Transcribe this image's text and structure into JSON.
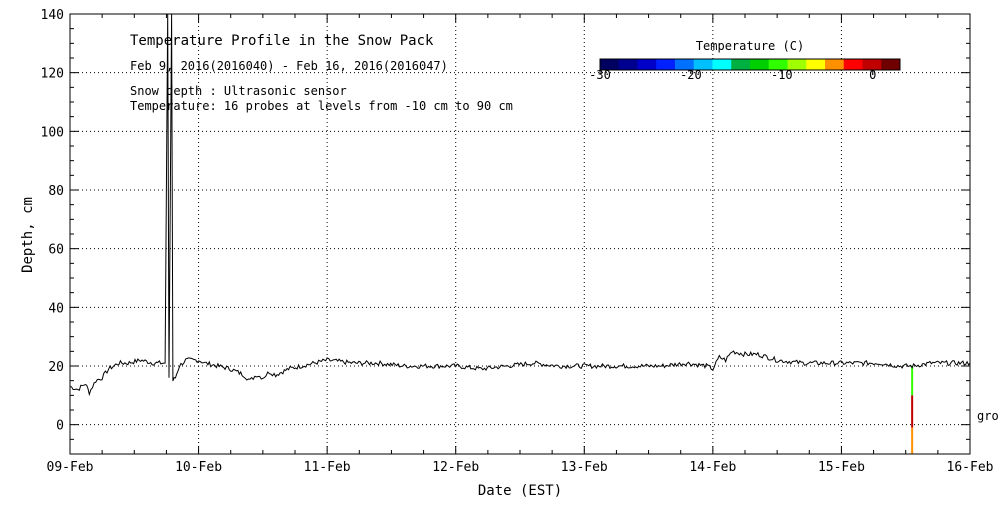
{
  "chart_data": {
    "type": "line",
    "title": "Temperature Profile in the Snow Pack",
    "subtitle": "Feb  9, 2016(2016040) - Feb 16, 2016(2016047)",
    "notes": [
      "Snow depth : Ultrasonic sensor",
      "Temperature: 16 probes at levels from -10 cm to 90 cm"
    ],
    "xlabel": "Date (EST)",
    "ylabel": "Depth, cm",
    "x_ticks": [
      "09-Feb",
      "10-Feb",
      "11-Feb",
      "12-Feb",
      "13-Feb",
      "14-Feb",
      "15-Feb",
      "16-Feb"
    ],
    "xlim_days": [
      9,
      16
    ],
    "y_ticks": [
      "0",
      "20",
      "40",
      "60",
      "80",
      "100",
      "120",
      "140"
    ],
    "ylim": [
      -10,
      140
    ],
    "grid": true,
    "side_label": "gro",
    "colorbar": {
      "title": "Temperature (C)",
      "ticks": [
        "-30",
        "-20",
        "-10",
        "0"
      ],
      "range": [
        -30,
        3
      ],
      "colors": [
        "#000060",
        "#000090",
        "#0000c8",
        "#0020ff",
        "#0070ff",
        "#00c0ff",
        "#00ffff",
        "#00b040",
        "#00d000",
        "#30ff00",
        "#a0ff00",
        "#ffff00",
        "#ff9000",
        "#ff0000",
        "#c00000",
        "#700000"
      ]
    },
    "series": [
      {
        "line_color": "#000000",
        "points": [
          [
            9.0,
            13
          ],
          [
            9.06,
            12
          ],
          [
            9.12,
            14
          ],
          [
            9.15,
            11
          ],
          [
            9.2,
            15
          ],
          [
            9.25,
            16
          ],
          [
            9.3,
            19
          ],
          [
            9.38,
            21
          ],
          [
            9.45,
            21
          ],
          [
            9.55,
            22
          ],
          [
            9.65,
            21
          ],
          [
            9.74,
            21
          ],
          [
            9.76,
            140
          ],
          [
            9.77,
            16
          ],
          [
            9.79,
            140
          ],
          [
            9.8,
            15
          ],
          [
            9.82,
            16
          ],
          [
            9.85,
            20
          ],
          [
            9.9,
            22
          ],
          [
            10.0,
            22
          ],
          [
            10.05,
            21
          ],
          [
            10.15,
            20
          ],
          [
            10.25,
            19
          ],
          [
            10.35,
            17
          ],
          [
            10.4,
            15
          ],
          [
            10.45,
            17
          ],
          [
            10.5,
            16
          ],
          [
            10.55,
            18
          ],
          [
            10.6,
            17
          ],
          [
            10.7,
            19
          ],
          [
            10.8,
            20
          ],
          [
            10.9,
            21
          ],
          [
            11.0,
            22
          ],
          [
            11.2,
            21
          ],
          [
            11.4,
            21
          ],
          [
            11.6,
            20
          ],
          [
            11.8,
            20
          ],
          [
            12.0,
            20
          ],
          [
            12.2,
            19
          ],
          [
            12.4,
            20
          ],
          [
            12.6,
            21
          ],
          [
            12.8,
            20
          ],
          [
            13.0,
            20
          ],
          [
            13.2,
            20
          ],
          [
            13.4,
            20
          ],
          [
            13.6,
            20
          ],
          [
            13.8,
            21
          ],
          [
            13.95,
            20
          ],
          [
            14.0,
            19
          ],
          [
            14.05,
            23
          ],
          [
            14.1,
            22
          ],
          [
            14.15,
            25
          ],
          [
            14.25,
            24
          ],
          [
            14.35,
            24
          ],
          [
            14.5,
            22
          ],
          [
            14.7,
            21
          ],
          [
            14.9,
            21
          ],
          [
            15.1,
            21
          ],
          [
            15.3,
            21
          ],
          [
            15.45,
            20
          ],
          [
            15.55,
            20
          ],
          [
            15.7,
            21
          ],
          [
            15.9,
            21
          ],
          [
            16.0,
            21
          ]
        ]
      }
    ],
    "probe_column": {
      "day": 15.55,
      "segments": [
        {
          "from": 20,
          "to": 10,
          "color": "#30ff00"
        },
        {
          "from": 10,
          "to": -1,
          "color": "#c00000"
        },
        {
          "from": -1,
          "to": -10,
          "color": "#ff9000"
        }
      ]
    }
  }
}
